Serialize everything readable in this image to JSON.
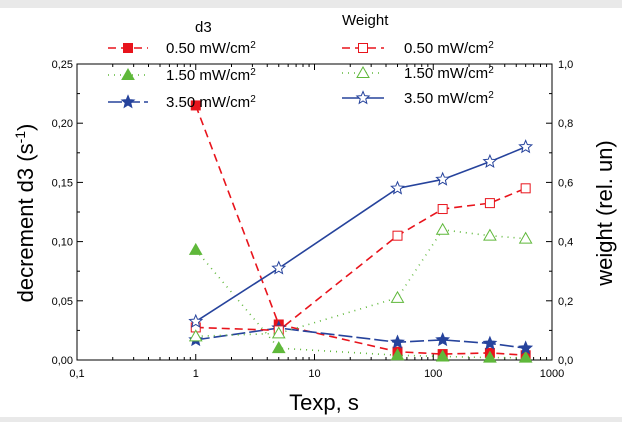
{
  "chart_data": {
    "type": "line",
    "x_scale": "log",
    "xlabel": "Texp, s",
    "ylabel_left": "decrement d3 (s",
    "ylabel_left_sup": "-1",
    "ylabel_left_end": ")",
    "ylabel_right": "weight (rel. un)",
    "xlim": [
      0.1,
      1000
    ],
    "ylim_left": [
      0,
      0.25
    ],
    "ylim_right": [
      0,
      1.0
    ],
    "x_ticks": [
      {
        "value": 0.1,
        "label": "0,1"
      },
      {
        "value": 1,
        "label": "1"
      },
      {
        "value": 10,
        "label": "10"
      },
      {
        "value": 100,
        "label": "100"
      },
      {
        "value": 1000,
        "label": "1000"
      }
    ],
    "y_left_ticks": [
      {
        "value": 0,
        "label": "0,00"
      },
      {
        "value": 0.05,
        "label": "0,05"
      },
      {
        "value": 0.1,
        "label": "0,10"
      },
      {
        "value": 0.15,
        "label": "0,15"
      },
      {
        "value": 0.2,
        "label": "0,20"
      },
      {
        "value": 0.25,
        "label": "0,25"
      }
    ],
    "y_right_ticks": [
      {
        "value": 0,
        "label": "0,0"
      },
      {
        "value": 0.2,
        "label": "0,2"
      },
      {
        "value": 0.4,
        "label": "0,4"
      },
      {
        "value": 0.6,
        "label": "0,6"
      },
      {
        "value": 0.8,
        "label": "0,8"
      },
      {
        "value": 1.0,
        "label": "1,0"
      }
    ],
    "legend": {
      "group_d3_title": "d3",
      "group_weight_title": "Weight",
      "unit_sup": "2"
    },
    "series": [
      {
        "name": "0.50 mW/cm",
        "group": "d3",
        "axis": "left",
        "color": "#e8141c",
        "dash": "8,5",
        "marker": "square",
        "filled": true,
        "x": [
          1,
          5,
          50,
          120,
          300,
          600
        ],
        "y": [
          0.215,
          0.03,
          0.007,
          0.005,
          0.006,
          0.004
        ]
      },
      {
        "name": "1.50 mW/cm",
        "group": "d3",
        "axis": "left",
        "color": "#5fb83a",
        "dash": "1,5",
        "marker": "triangle",
        "filled": true,
        "x": [
          1,
          5,
          50,
          120,
          300,
          600
        ],
        "y": [
          0.093,
          0.01,
          0.004,
          0.003,
          0.002,
          0.002
        ]
      },
      {
        "name": "3.50 mW/cm",
        "group": "d3",
        "axis": "left",
        "color": "#26439c",
        "dash": "14,4",
        "marker": "star",
        "filled": true,
        "x": [
          1,
          5,
          50,
          120,
          300,
          600
        ],
        "y": [
          0.017,
          0.027,
          0.015,
          0.017,
          0.014,
          0.01
        ]
      },
      {
        "name": "0.50 mW/cm",
        "group": "weight",
        "axis": "right",
        "color": "#e8141c",
        "dash": "8,5",
        "marker": "square",
        "filled": false,
        "x": [
          1,
          5,
          50,
          120,
          300,
          600
        ],
        "y": [
          0.11,
          0.1,
          0.42,
          0.51,
          0.53,
          0.58
        ]
      },
      {
        "name": "1.50 mW/cm",
        "group": "weight",
        "axis": "right",
        "color": "#5fb83a",
        "dash": "1,5",
        "marker": "triangle",
        "filled": false,
        "x": [
          1,
          5,
          50,
          120,
          300,
          600
        ],
        "y": [
          0.08,
          0.09,
          0.21,
          0.44,
          0.42,
          0.41
        ]
      },
      {
        "name": "3.50 mW/cm",
        "group": "weight",
        "axis": "right",
        "color": "#26439c",
        "dash": "",
        "marker": "star",
        "filled": false,
        "x": [
          1,
          5,
          50,
          120,
          300,
          600
        ],
        "y": [
          0.13,
          0.31,
          0.58,
          0.61,
          0.67,
          0.72
        ]
      }
    ]
  }
}
